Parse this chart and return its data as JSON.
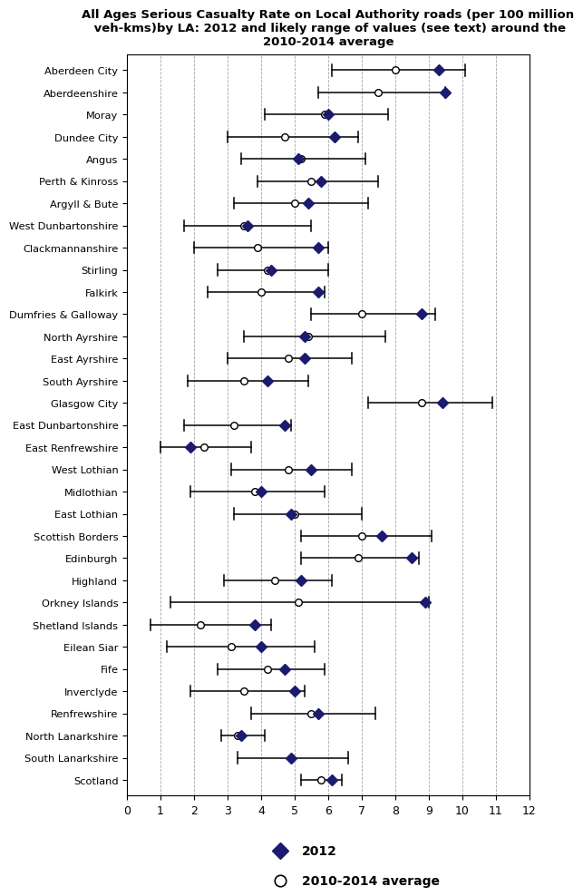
{
  "title": "All Ages Serious Casualty Rate on Local Authority roads (per 100 million\n veh-kms)by LA: 2012 and likely range of values (see text) around the\n2010-2014 average",
  "labels": [
    "Aberdeen City",
    "Aberdeenshire",
    "Moray",
    "Dundee City",
    "Angus",
    "Perth & Kinross",
    "Argyll & Bute",
    "West Dunbartonshire",
    "Clackmannanshire",
    "Stirling",
    "Falkirk",
    "Dumfries & Galloway",
    "North Ayrshire",
    "East Ayrshire",
    "South Ayrshire",
    "Glasgow City",
    "East Dunbartonshire",
    "East Renfrewshire",
    "West Lothian",
    "Midlothian",
    "East Lothian",
    "Scottish Borders",
    "Edinburgh",
    "Highland",
    "Orkney Islands",
    "Shetland Islands",
    "Eilean Siar",
    "Fife",
    "Inverclyde",
    "Renfrewshire",
    "North Lanarkshire",
    "South Lanarkshire",
    "Scotland"
  ],
  "val_2012": [
    9.3,
    9.5,
    6.0,
    6.2,
    5.1,
    5.8,
    5.4,
    3.6,
    5.7,
    4.3,
    5.7,
    8.8,
    5.3,
    5.3,
    4.2,
    9.4,
    4.7,
    1.9,
    5.5,
    4.0,
    4.9,
    7.6,
    8.5,
    5.2,
    8.9,
    3.8,
    4.0,
    4.7,
    5.0,
    5.7,
    3.4,
    4.9,
    6.1
  ],
  "val_avg": [
    8.0,
    7.5,
    5.9,
    4.7,
    5.2,
    5.5,
    5.0,
    3.5,
    3.9,
    4.2,
    4.0,
    7.0,
    5.4,
    4.8,
    3.5,
    8.8,
    3.2,
    2.3,
    4.8,
    3.8,
    5.0,
    7.0,
    6.9,
    4.4,
    5.1,
    2.2,
    3.1,
    4.2,
    3.5,
    5.5,
    3.3,
    4.9,
    5.8
  ],
  "err_low_abs": [
    6.1,
    5.7,
    4.1,
    3.0,
    3.4,
    3.9,
    3.2,
    1.7,
    2.0,
    2.7,
    2.4,
    5.5,
    3.5,
    3.0,
    1.8,
    7.2,
    1.7,
    1.0,
    3.1,
    1.9,
    3.2,
    5.2,
    5.2,
    2.9,
    1.3,
    0.7,
    1.2,
    2.7,
    1.9,
    3.7,
    2.8,
    3.3,
    5.2
  ],
  "err_high_abs": [
    10.1,
    9.5,
    7.8,
    6.9,
    7.1,
    7.5,
    7.2,
    5.5,
    6.0,
    6.0,
    5.9,
    9.2,
    7.7,
    6.7,
    5.4,
    10.9,
    4.9,
    3.7,
    6.7,
    5.9,
    7.0,
    9.1,
    8.7,
    6.1,
    9.0,
    4.3,
    5.6,
    5.9,
    5.3,
    7.4,
    4.1,
    6.6,
    6.4
  ],
  "xlim": [
    0,
    12
  ],
  "xticks": [
    0,
    1,
    2,
    3,
    4,
    5,
    6,
    7,
    8,
    9,
    10,
    11,
    12
  ],
  "color_2012": "#1a1a6e",
  "color_avg": "white",
  "background_color": "#ffffff"
}
